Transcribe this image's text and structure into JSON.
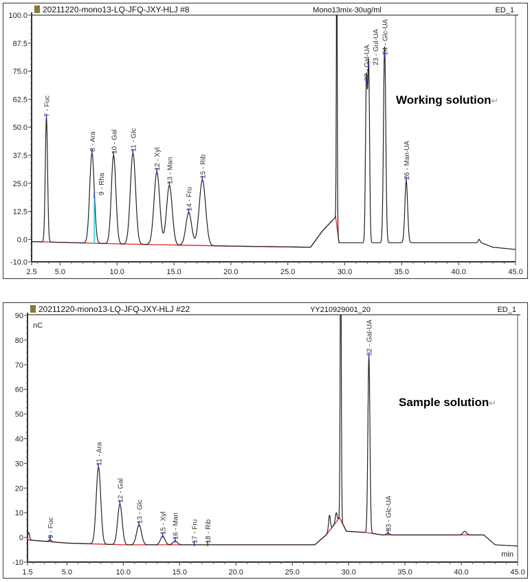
{
  "chart_data": [
    {
      "type": "line",
      "header": {
        "left": "20211220-mono13-LQ-JFQ-JXY-HLJ #8",
        "center": "Mono13mix-30ug/ml",
        "right": "ED_1"
      },
      "annotation": "Working solution",
      "yunit": "",
      "xunit": "",
      "xlim": [
        2.5,
        45.0
      ],
      "ylim": [
        -10.0,
        100.0
      ],
      "xticks": [
        "2.5",
        "5.0",
        "10.0",
        "15.0",
        "20.0",
        "25.0",
        "30.0",
        "35.0",
        "40.0",
        "45.0"
      ],
      "yticks": [
        "100.0",
        "87.5",
        "75.0",
        "62.5",
        "50.0",
        "37.5",
        "25.0",
        "12.5",
        "0.0",
        "-10.0"
      ],
      "baseline": [
        [
          2.5,
          -1.0
        ],
        [
          10,
          -2.0
        ],
        [
          20,
          -3.0
        ],
        [
          27,
          -3.5
        ],
        [
          28,
          3.5
        ],
        [
          29.2,
          10.0
        ],
        [
          29.5,
          -1.5
        ],
        [
          42,
          -1.5
        ],
        [
          43,
          -3.5
        ],
        [
          45,
          -4.5
        ]
      ],
      "peaks": [
        {
          "label": "7 - Fuc",
          "rt": 3.8,
          "apex": 54.0,
          "sigma": 0.1
        },
        {
          "label": "8 - Ara",
          "rt": 7.8,
          "apex": 38.5,
          "sigma": 0.2
        },
        {
          "label": "9 - Rha",
          "rt": 8.0,
          "apex": 19.0,
          "sigma": 0.0
        },
        {
          "label": "10 - Gal",
          "rt": 9.7,
          "apex": 37.5,
          "sigma": 0.2
        },
        {
          "label": "11 - Glc",
          "rt": 11.4,
          "apex": 38.5,
          "sigma": 0.23
        },
        {
          "label": "12 - Xyl",
          "rt": 13.5,
          "apex": 30.0,
          "sigma": 0.25
        },
        {
          "label": "13 - Man",
          "rt": 14.6,
          "apex": 24.0,
          "sigma": 0.25
        },
        {
          "label": "14 - Fru",
          "rt": 16.3,
          "apex": 12.0,
          "sigma": 0.25
        },
        {
          "label": "15 - Rib",
          "rt": 17.5,
          "apex": 26.5,
          "sigma": 0.28
        },
        {
          "label": "",
          "rt": 29.3,
          "apex": 130.0,
          "sigma": 0.04
        },
        {
          "label": "22 - Gal-UA",
          "rt": 31.9,
          "apex": 70.0,
          "sigma": 0.08
        },
        {
          "label": "23 - Gul-UA",
          "rt": 32.1,
          "apex": 77.0,
          "sigma": 0.08
        },
        {
          "label": "24 - Glc-UA",
          "rt": 33.5,
          "apex": 86.0,
          "sigma": 0.1
        },
        {
          "label": "26 - Man-UA",
          "rt": 35.4,
          "apex": 26.0,
          "sigma": 0.12
        },
        {
          "label": "",
          "rt": 41.8,
          "apex": 0.0,
          "sigma": 0.08
        }
      ]
    },
    {
      "type": "line",
      "header": {
        "left": "20211220-mono13-LQ-JFQ-JXY-HLJ #22",
        "center": "YY210929001_20",
        "right": "ED_1"
      },
      "annotation": "Sample solution",
      "yunit": "nC",
      "xunit": "min",
      "xlim": [
        1.5,
        45.0
      ],
      "ylim": [
        -10,
        90
      ],
      "xticks": [
        "1.5",
        "5.0",
        "10.0",
        "15.0",
        "20.0",
        "25.0",
        "30.0",
        "35.0",
        "40.0",
        "45.0"
      ],
      "yticks": [
        "90",
        "80",
        "70",
        "60",
        "50",
        "40",
        "30",
        "20",
        "10",
        "0",
        "-10"
      ],
      "baseline": [
        [
          1.5,
          -1.0
        ],
        [
          5,
          -2.3
        ],
        [
          10,
          -3.0
        ],
        [
          27,
          -3.0
        ],
        [
          28,
          1.0
        ],
        [
          29.2,
          8.0
        ],
        [
          29.8,
          2.5
        ],
        [
          31.5,
          2.0
        ],
        [
          33,
          1.0
        ],
        [
          42,
          1.0
        ],
        [
          43,
          -3.0
        ],
        [
          45,
          -3.5
        ]
      ],
      "peaks": [
        {
          "label": "",
          "rt": 1.6,
          "apex": 2.0,
          "sigma": 0.08
        },
        {
          "label": "9 - Fuc",
          "rt": 3.5,
          "apex": -1.0,
          "sigma": 0.12
        },
        {
          "label": "11 - Ara",
          "rt": 7.8,
          "apex": 28.5,
          "sigma": 0.2
        },
        {
          "label": "12 - Gal",
          "rt": 9.7,
          "apex": 13.5,
          "sigma": 0.2
        },
        {
          "label": "13 - Glc",
          "rt": 11.4,
          "apex": 5.0,
          "sigma": 0.22
        },
        {
          "label": "15 - Xyl",
          "rt": 13.5,
          "apex": 0.5,
          "sigma": 0.2
        },
        {
          "label": "16 - Man",
          "rt": 14.6,
          "apex": -1.5,
          "sigma": 0.2
        },
        {
          "label": "17 - Fru",
          "rt": 16.3,
          "apex": -3.0,
          "sigma": 0.0
        },
        {
          "label": "18 - Rib",
          "rt": 17.5,
          "apex": -3.0,
          "sigma": 0.0
        },
        {
          "label": "",
          "rt": 28.3,
          "apex": 9.0,
          "sigma": 0.08
        },
        {
          "label": "",
          "rt": 28.9,
          "apex": 10.0,
          "sigma": 0.08
        },
        {
          "label": "",
          "rt": 29.3,
          "apex": 120.0,
          "sigma": 0.05
        },
        {
          "label": "32 - Gal-UA",
          "rt": 31.8,
          "apex": 73.0,
          "sigma": 0.09
        },
        {
          "label": "33 - Glc-UA",
          "rt": 33.5,
          "apex": 1.8,
          "sigma": 0.12
        },
        {
          "label": "",
          "rt": 40.3,
          "apex": 2.5,
          "sigma": 0.15
        }
      ]
    }
  ],
  "colors": {
    "trace": "#222222",
    "baseline": "#e02020",
    "marker": "#2030d0",
    "fill": "#20d0e0"
  }
}
